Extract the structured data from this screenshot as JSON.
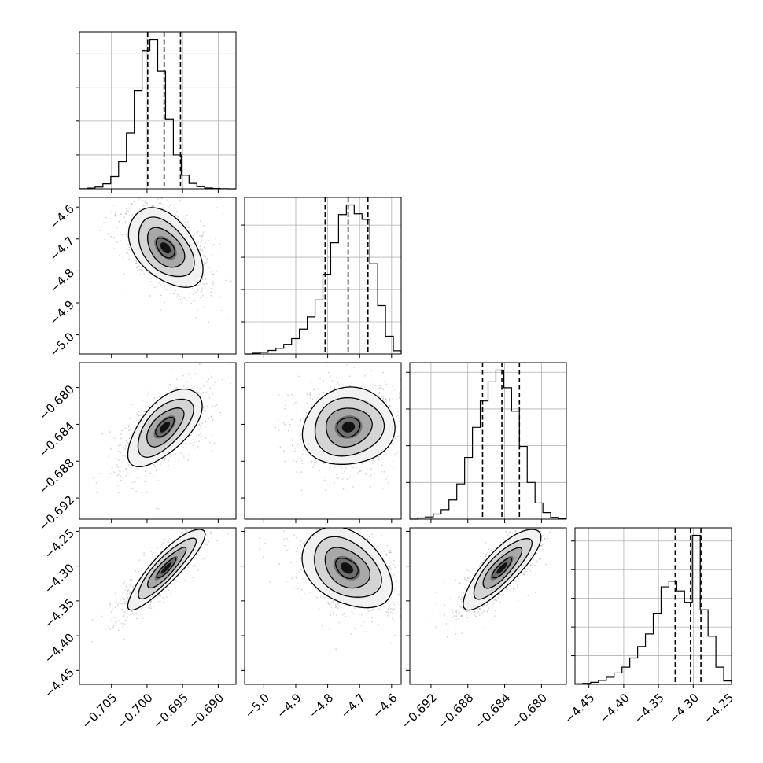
{
  "chart_data": {
    "type": "corner",
    "parameters": [
      {
        "index": 0,
        "label": "",
        "range": [
          -0.7095,
          -0.6875
        ],
        "ticks": [
          -0.705,
          -0.7,
          -0.695,
          -0.69
        ],
        "tick_labels": [
          "−0.705",
          "−0.700",
          "−0.695",
          "−0.690"
        ],
        "quantiles": [
          -0.6999,
          -0.6976,
          -0.6953
        ]
      },
      {
        "index": 1,
        "label": "",
        "range": [
          -5.06,
          -4.57
        ],
        "ticks": [
          -5.0,
          -4.9,
          -4.8,
          -4.7,
          -4.6
        ],
        "tick_labels": [
          "−5.0",
          "−4.9",
          "−4.8",
          "−4.7",
          "−4.6"
        ],
        "quantiles": [
          -4.808,
          -4.736,
          -4.674
        ]
      },
      {
        "index": 2,
        "label": "",
        "range": [
          -0.6943,
          -0.6773
        ],
        "ticks": [
          -0.692,
          -0.688,
          -0.684,
          -0.68
        ],
        "tick_labels": [
          "−0.692",
          "−0.688",
          "−0.684",
          "−0.680"
        ],
        "quantiles": [
          -0.6864,
          -0.6843,
          -0.6824
        ]
      },
      {
        "index": 3,
        "label": "",
        "range": [
          -4.47,
          -4.245
        ],
        "ticks": [
          -4.45,
          -4.4,
          -4.35,
          -4.3,
          -4.25
        ],
        "tick_labels": [
          "−4.45",
          "−4.40",
          "−4.35",
          "−4.30",
          "−4.25"
        ],
        "quantiles": [
          -4.326,
          -4.304,
          -4.289
        ]
      }
    ],
    "histograms": [
      {
        "param": 0,
        "bin_edges": [
          -0.7095,
          -0.7084,
          -0.7073,
          -0.7062,
          -0.7051,
          -0.704,
          -0.7029,
          -0.7018,
          -0.7007,
          -0.6996,
          -0.6985,
          -0.6974,
          -0.6963,
          -0.6952,
          -0.6941,
          -0.693,
          -0.6919,
          -0.6908,
          -0.6897,
          -0.6886,
          -0.6875
        ],
        "counts": [
          1,
          5,
          13,
          37,
          90,
          200,
          412,
          722,
          1017,
          1100,
          870,
          515,
          250,
          100,
          40,
          16,
          6,
          2,
          1,
          0
        ]
      },
      {
        "param": 1,
        "bin_edges": [
          -5.06,
          -5.0355,
          -5.011,
          -4.9865,
          -4.962,
          -4.9375,
          -4.913,
          -4.8885,
          -4.864,
          -4.8395,
          -4.815,
          -4.7905,
          -4.766,
          -4.7415,
          -4.717,
          -4.6925,
          -4.668,
          -4.6435,
          -4.619,
          -4.5945,
          -4.57
        ],
        "counts": [
          0,
          5,
          10,
          22,
          35,
          60,
          95,
          155,
          230,
          335,
          495,
          690,
          865,
          925,
          870,
          835,
          560,
          300,
          110,
          20
        ]
      },
      {
        "param": 2,
        "bin_edges": [
          -0.6943,
          -0.69345,
          -0.6926,
          -0.69175,
          -0.6909,
          -0.69005,
          -0.6892,
          -0.68835,
          -0.6875,
          -0.68665,
          -0.6858,
          -0.68495,
          -0.6841,
          -0.68325,
          -0.6824,
          -0.68155,
          -0.6807,
          -0.67985,
          -0.679,
          -0.67815,
          -0.6773
        ],
        "counts": [
          0,
          8,
          15,
          35,
          65,
          130,
          240,
          420,
          625,
          805,
          935,
          1015,
          895,
          735,
          495,
          250,
          110,
          45,
          12,
          4
        ]
      },
      {
        "param": 3,
        "bin_edges": [
          -4.47,
          -4.45875,
          -4.4475,
          -4.43625,
          -4.425,
          -4.41375,
          -4.4025,
          -4.39125,
          -4.38,
          -4.36875,
          -4.3575,
          -4.34625,
          -4.335,
          -4.32375,
          -4.3125,
          -4.30125,
          -4.29,
          -4.27875,
          -4.2675,
          -4.25625,
          -4.245
        ],
        "counts": [
          5,
          9,
          18,
          35,
          62,
          100,
          150,
          230,
          330,
          440,
          620,
          850,
          900,
          815,
          715,
          1300,
          650,
          420,
          150,
          30
        ]
      }
    ],
    "density_pairs": [
      {
        "x": 0,
        "y": 1,
        "mean": [
          -0.6974,
          -4.728
        ],
        "sd": [
          0.0026,
          0.062
        ],
        "corr": -0.45
      },
      {
        "x": 0,
        "y": 2,
        "mean": [
          -0.6975,
          -0.6843
        ],
        "sd": [
          0.0026,
          0.0021
        ],
        "corr": 0.62
      },
      {
        "x": 1,
        "y": 2,
        "mean": [
          -4.735,
          -0.6843
        ],
        "sd": [
          0.072,
          0.0021
        ],
        "corr": 0.08
      },
      {
        "x": 0,
        "y": 3,
        "mean": [
          -0.6973,
          -4.303
        ],
        "sd": [
          0.0027,
          0.029
        ],
        "corr": 0.88
      },
      {
        "x": 1,
        "y": 3,
        "mean": [
          -4.74,
          -4.303
        ],
        "sd": [
          0.07,
          0.029
        ],
        "corr": -0.35
      },
      {
        "x": 2,
        "y": 3,
        "mean": [
          -0.6843,
          -4.303
        ],
        "sd": [
          0.0021,
          0.029
        ],
        "corr": 0.82
      }
    ],
    "contour_levels_sigma": [
      0.5,
      1.0,
      1.5,
      2.0
    ],
    "grid": true,
    "colors": {
      "line": "#000000",
      "grid": "#b0b0b0",
      "points": "#8a8a8a"
    }
  }
}
